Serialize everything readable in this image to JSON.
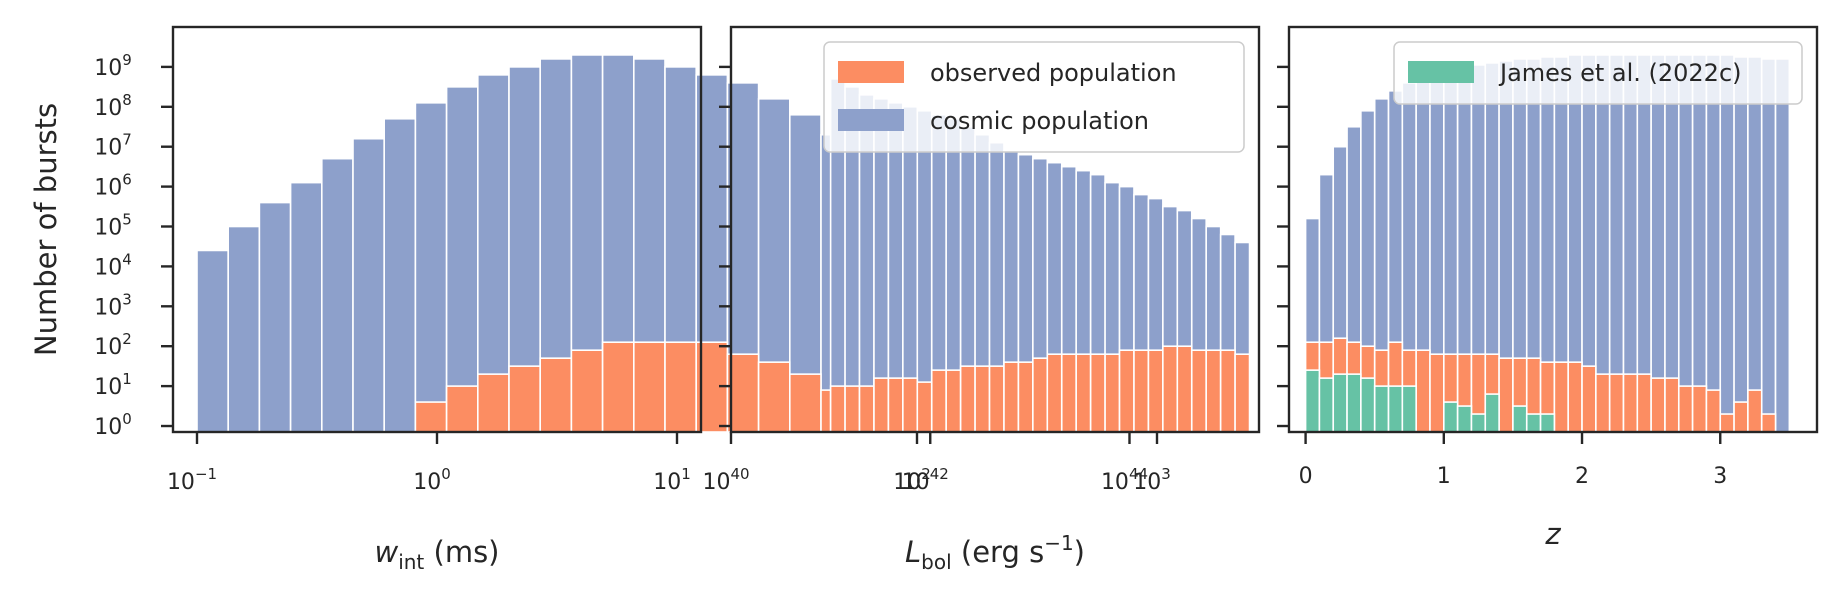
{
  "colors": {
    "observed": "#fc8d62",
    "cosmic": "#8da0cb",
    "james": "#66c2a5",
    "axis": "#262626",
    "bar_edge": "#ffffff"
  },
  "chart_data": [
    {
      "type": "bar",
      "panel": "left",
      "ylabel": "Number of bursts",
      "xscale": "log",
      "yscale": "log",
      "xlim_log10": [
        -1.1,
        1.1
      ],
      "ylim_log10": [
        -0.15,
        10
      ],
      "xticks": [
        {
          "base": "10",
          "exp": "−1"
        },
        {
          "base": "10",
          "exp": "0"
        },
        {
          "base": "10",
          "exp": "1"
        },
        {
          "base": "10",
          "exp": "2"
        },
        {
          "base": "10",
          "exp": "3"
        }
      ],
      "yticks": [
        {
          "base": "10",
          "exp": "0"
        },
        {
          "base": "10",
          "exp": "1"
        },
        {
          "base": "10",
          "exp": "2"
        },
        {
          "base": "10",
          "exp": "3"
        },
        {
          "base": "10",
          "exp": "4"
        },
        {
          "base": "10",
          "exp": "5"
        },
        {
          "base": "10",
          "exp": "6"
        },
        {
          "base": "10",
          "exp": "7"
        },
        {
          "base": "10",
          "exp": "8"
        },
        {
          "base": "10",
          "exp": "9"
        }
      ],
      "xlabel_main": "w",
      "xlabel_sub": "int",
      "xlabel_rest": " (ms)",
      "bin_edges_log10": [
        -1.0,
        -0.87,
        -0.74,
        -0.61,
        -0.48,
        -0.35,
        -0.22,
        -0.09,
        0.04,
        0.17,
        0.3,
        0.43,
        0.56,
        0.69,
        0.82,
        0.95,
        1.08,
        1.21,
        1.34,
        1.47,
        1.6,
        1.73,
        1.86,
        1.99,
        2.12,
        2.25,
        2.38,
        2.51,
        2.64,
        2.77,
        2.9
      ],
      "series": [
        {
          "name": "cosmic population",
          "role": "cosmic",
          "log10_values": [
            4.4,
            5.0,
            5.6,
            6.1,
            6.7,
            7.2,
            7.7,
            8.1,
            8.5,
            8.8,
            9.0,
            9.2,
            9.3,
            9.3,
            9.2,
            9.0,
            8.8,
            8.6,
            8.2,
            7.8,
            7.3,
            6.7,
            6.1,
            5.5,
            4.8,
            4.1,
            3.4,
            2.6
          ]
        },
        {
          "name": "observed population",
          "role": "observed",
          "log10_values": [
            null,
            null,
            null,
            null,
            null,
            null,
            null,
            0.6,
            1.0,
            1.3,
            1.5,
            1.7,
            1.9,
            2.1,
            2.1,
            2.1,
            2.1,
            1.8,
            1.6,
            1.3,
            0.9,
            0.3,
            null,
            0.3,
            null,
            null,
            null,
            null
          ]
        }
      ]
    },
    {
      "type": "bar",
      "panel": "middle",
      "xscale": "log",
      "yscale": "log",
      "xlim_log10": [
        40,
        45.3
      ],
      "ylim_log10": [
        -0.15,
        10
      ],
      "xticks": [
        {
          "base": "10",
          "exp": "40"
        },
        {
          "base": "10",
          "exp": "42"
        },
        {
          "base": "10",
          "exp": "44"
        }
      ],
      "xlabel_main": "L",
      "xlabel_sub": "bol",
      "xlabel_rest": " (erg s",
      "xlabel_exp": "−1",
      "xlabel_close": ")",
      "bin_edges_log10": [
        41.0,
        41.145,
        41.29,
        41.435,
        41.58,
        41.725,
        41.87,
        42.015,
        42.16,
        42.305,
        42.45,
        42.595,
        42.74,
        42.885,
        43.03,
        43.175,
        43.32,
        43.465,
        43.61,
        43.755,
        43.9,
        44.045,
        44.19,
        44.335,
        44.48,
        44.625,
        44.77,
        44.915,
        45.06,
        45.205
      ],
      "series": [
        {
          "name": "cosmic population",
          "role": "cosmic",
          "log10_values": [
            8.7,
            8.5,
            8.3,
            8.2,
            8.1,
            8.0,
            7.9,
            7.8,
            7.7,
            7.5,
            7.3,
            7.1,
            6.9,
            6.8,
            6.7,
            6.6,
            6.5,
            6.4,
            6.3,
            6.1,
            6.0,
            5.8,
            5.7,
            5.5,
            5.4,
            5.2,
            5.0,
            4.8,
            4.6
          ]
        },
        {
          "name": "observed population",
          "role": "observed",
          "log10_values": [
            1.0,
            1.0,
            1.0,
            1.2,
            1.2,
            1.2,
            1.1,
            1.4,
            1.4,
            1.5,
            1.5,
            1.5,
            1.6,
            1.6,
            1.7,
            1.8,
            1.8,
            1.8,
            1.8,
            1.8,
            1.9,
            1.9,
            1.9,
            2.0,
            2.0,
            1.9,
            1.9,
            1.9,
            1.8
          ]
        }
      ],
      "legend": {
        "location": "upper right",
        "entries": [
          {
            "label": "observed population",
            "role": "observed"
          },
          {
            "label": "cosmic population",
            "role": "cosmic"
          }
        ]
      }
    },
    {
      "type": "bar",
      "panel": "right",
      "xscale": "linear",
      "yscale": "log",
      "xlim": [
        -0.12,
        3.7
      ],
      "ylim_log10": [
        -0.15,
        10
      ],
      "xticks": [
        "0",
        "1",
        "2",
        "3"
      ],
      "xlabel": "z",
      "bin_edges": [
        0.0,
        0.1,
        0.2,
        0.3,
        0.4,
        0.5,
        0.6,
        0.7,
        0.8,
        0.9,
        1.0,
        1.1,
        1.2,
        1.3,
        1.4,
        1.5,
        1.6,
        1.7,
        1.8,
        1.9,
        2.0,
        2.1,
        2.2,
        2.3,
        2.4,
        2.5,
        2.6,
        2.7,
        2.8,
        2.9,
        3.0,
        3.1,
        3.2,
        3.3,
        3.4,
        3.5
      ],
      "series": [
        {
          "name": "cosmic population",
          "role": "cosmic",
          "log10_values": [
            5.2,
            6.3,
            7.0,
            7.5,
            7.9,
            8.2,
            8.4,
            8.6,
            8.7,
            8.8,
            8.9,
            9.0,
            9.05,
            9.1,
            9.15,
            9.2,
            9.2,
            9.25,
            9.25,
            9.3,
            9.3,
            9.3,
            9.3,
            9.3,
            9.3,
            9.3,
            9.3,
            9.3,
            9.3,
            9.3,
            9.3,
            9.25,
            9.25,
            9.2,
            9.2
          ]
        },
        {
          "name": "observed population",
          "role": "observed",
          "log10_values": [
            2.1,
            2.1,
            2.2,
            2.1,
            2.0,
            1.9,
            2.1,
            1.9,
            1.9,
            1.8,
            1.8,
            1.8,
            1.8,
            1.8,
            1.7,
            1.7,
            1.7,
            1.6,
            1.6,
            1.6,
            1.5,
            1.3,
            1.3,
            1.3,
            1.3,
            1.2,
            1.2,
            1.0,
            1.0,
            0.9,
            0.3,
            0.6,
            0.9,
            0.3,
            null
          ]
        },
        {
          "name": "James et al. (2022c)",
          "role": "james",
          "log10_values": [
            1.4,
            1.2,
            1.3,
            1.3,
            1.2,
            1.0,
            1.0,
            1.0,
            null,
            null,
            0.6,
            0.5,
            0.3,
            0.8,
            null,
            0.5,
            0.3,
            0.3,
            null,
            null,
            null,
            null,
            null,
            null,
            null,
            null,
            null,
            null,
            null,
            null,
            null,
            null,
            null,
            null,
            null
          ]
        }
      ],
      "legend": {
        "location": "upper right",
        "entries": [
          {
            "label": "James et al. (2022c)",
            "role": "james"
          }
        ]
      }
    }
  ]
}
